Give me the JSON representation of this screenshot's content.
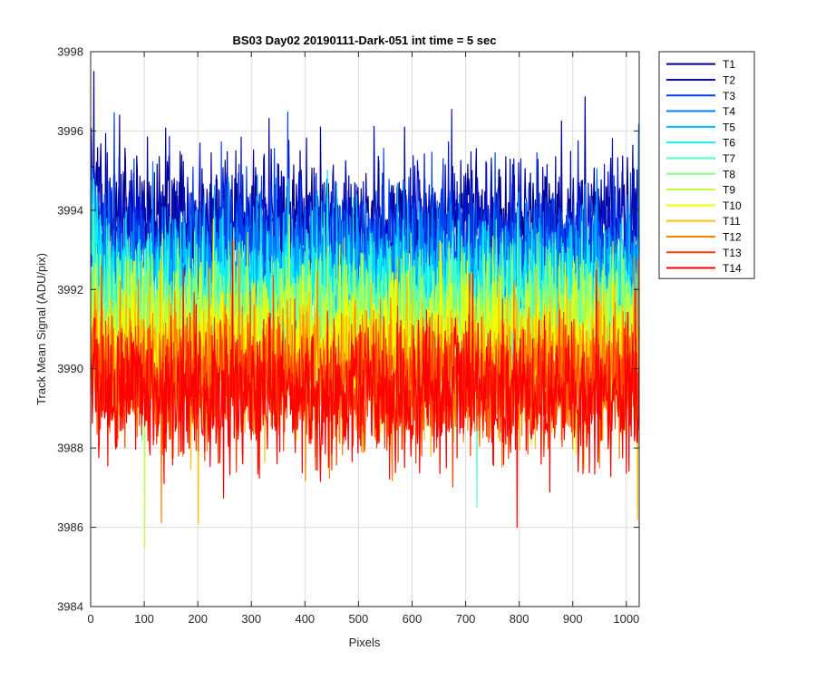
{
  "chart_data": {
    "type": "line",
    "title": "BS03 Day02 20190111-Dark-051 int time = 5 sec",
    "xlabel": "Pixels",
    "ylabel": "Track Mean Signal (ADU/pix)",
    "xlim": [
      0,
      1024
    ],
    "ylim": [
      3984,
      3998
    ],
    "xticks": [
      0,
      100,
      200,
      300,
      400,
      500,
      600,
      700,
      800,
      900,
      1000
    ],
    "yticks": [
      3984,
      3986,
      3988,
      3990,
      3992,
      3994,
      3996,
      3998
    ],
    "grid": true,
    "legend_position": "outside-right-top",
    "n_points": 1024,
    "series": [
      {
        "name": "T1",
        "color": "#00008f",
        "mean": 3993.8,
        "noise": 0.75
      },
      {
        "name": "T2",
        "color": "#0010c8",
        "mean": 3993.5,
        "noise": 0.75
      },
      {
        "name": "T3",
        "color": "#0040f0",
        "mean": 3993.0,
        "noise": 0.75
      },
      {
        "name": "T4",
        "color": "#0080ff",
        "mean": 3992.6,
        "noise": 0.75
      },
      {
        "name": "T5",
        "color": "#00b8ff",
        "mean": 3992.2,
        "noise": 0.75
      },
      {
        "name": "T6",
        "color": "#10f0f0",
        "mean": 3991.9,
        "noise": 0.75
      },
      {
        "name": "T7",
        "color": "#50ffc0",
        "mean": 3991.5,
        "noise": 0.8
      },
      {
        "name": "T8",
        "color": "#80ff80",
        "mean": 3991.2,
        "noise": 0.8
      },
      {
        "name": "T9",
        "color": "#c0ff40",
        "mean": 3990.9,
        "noise": 0.8
      },
      {
        "name": "T10",
        "color": "#f0ff00",
        "mean": 3990.6,
        "noise": 0.8
      },
      {
        "name": "T11",
        "color": "#ffc000",
        "mean": 3990.2,
        "noise": 0.8
      },
      {
        "name": "T12",
        "color": "#ff8000",
        "mean": 3989.9,
        "noise": 0.8
      },
      {
        "name": "T13",
        "color": "#ff4000",
        "mean": 3989.6,
        "noise": 0.8
      },
      {
        "name": "T14",
        "color": "#ff0000",
        "mean": 3989.4,
        "noise": 0.85
      }
    ],
    "annotations": [
      {
        "series": "T1",
        "x": 5,
        "y": 3997.5
      },
      {
        "series": "T1",
        "x": 53,
        "y": 3996.4
      },
      {
        "series": "T1",
        "x": 428,
        "y": 3996.1
      },
      {
        "series": "T1",
        "x": 585,
        "y": 3996.1
      },
      {
        "series": "T9",
        "x": 100,
        "y": 3985.5
      },
      {
        "series": "T11",
        "x": 200,
        "y": 3986.1
      },
      {
        "series": "T14",
        "x": 795,
        "y": 3986.0
      },
      {
        "series": "T7",
        "x": 720,
        "y": 3986.5
      },
      {
        "series": "T11",
        "x": 1020,
        "y": 3986.2
      }
    ]
  }
}
